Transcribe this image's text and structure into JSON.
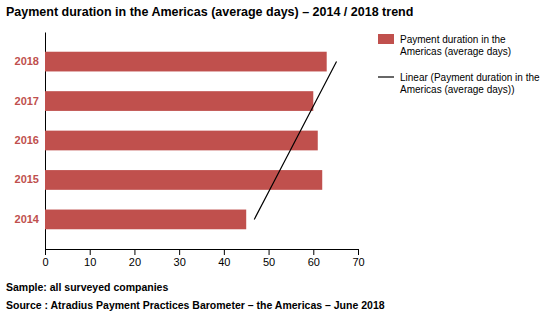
{
  "chart_data": {
    "type": "bar",
    "orientation": "horizontal",
    "title": "Payment duration in the Americas (average days) – 2014 / 2018 trend",
    "categories": [
      "2014",
      "2015",
      "2016",
      "2017",
      "2018"
    ],
    "series": [
      {
        "name": "Payment duration in the\nAmericas (average days)",
        "color": "#c0504d",
        "values": [
          45,
          62,
          61,
          60,
          63
        ]
      },
      {
        "name": "Linear (Payment duration in the\nAmericas (average days))",
        "type": "line",
        "color": "#000000",
        "values": [
          46.8,
          51.4,
          56,
          60.6,
          65.2
        ]
      }
    ],
    "xlim": [
      0,
      70
    ],
    "xticks": [
      0,
      10,
      20,
      30,
      40,
      50,
      60,
      70
    ],
    "grid": false,
    "legend": "right",
    "annotations": [
      "Sample: all surveyed companies",
      "Source : Atradius Payment Practices Barometer – the Americas – June 2018"
    ]
  }
}
